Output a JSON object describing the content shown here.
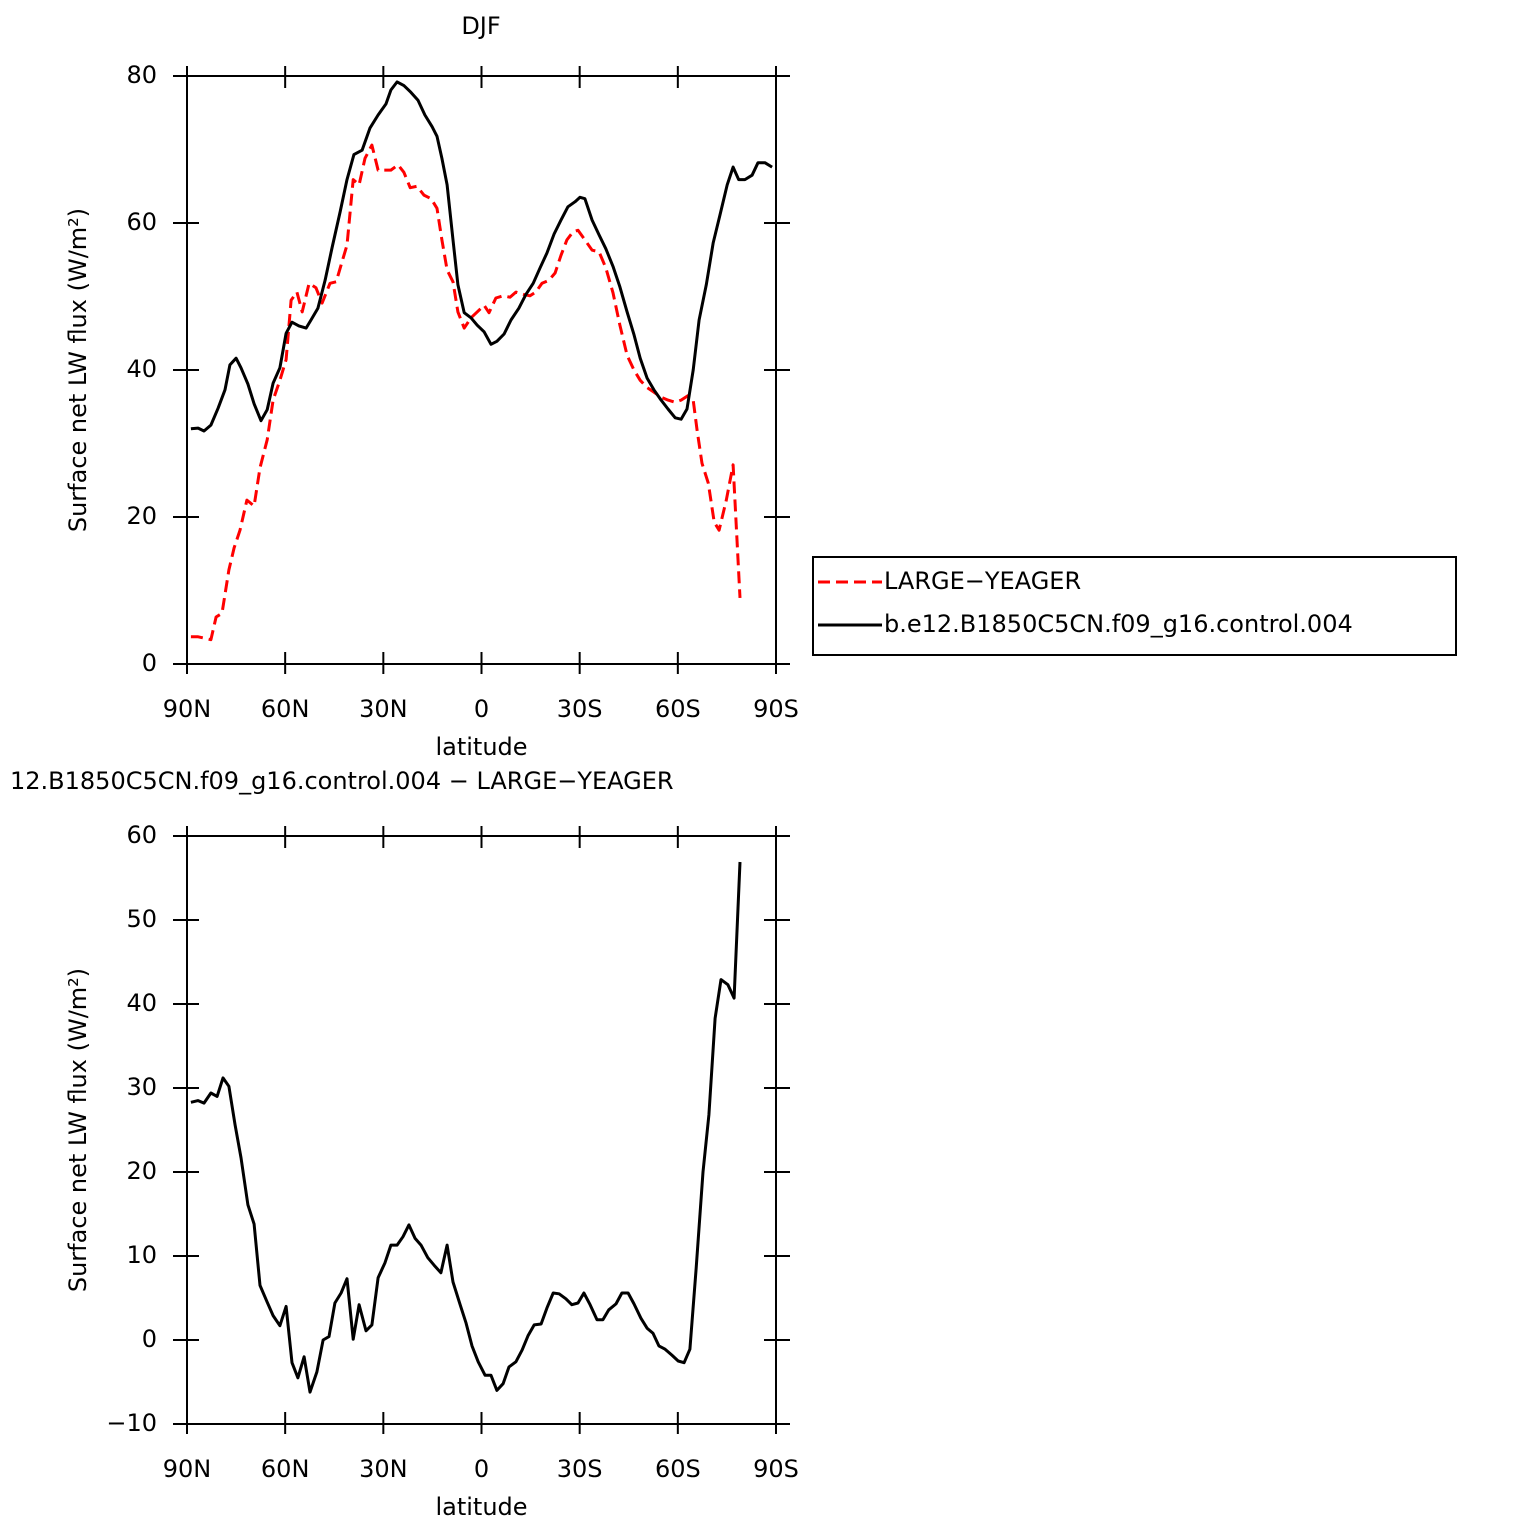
{
  "chart_data": [
    {
      "type": "line",
      "title": "DJF",
      "xlabel": "latitude",
      "ylabel": "Surface net LW flux (W/m²)",
      "xlim": [
        90,
        -90
      ],
      "xticks": [
        {
          "value": 90,
          "label": "90N"
        },
        {
          "value": 60,
          "label": "60N"
        },
        {
          "value": 30,
          "label": "30N"
        },
        0,
        {
          "value": -30,
          "label": "30S"
        },
        {
          "value": -60,
          "label": "60S"
        },
        {
          "value": -90,
          "label": "90S"
        }
      ],
      "ylim": [
        0,
        80
      ],
      "yticks": [
        0,
        20,
        40,
        60,
        80
      ],
      "legend": "right",
      "series": [
        {
          "name": "LARGE−YEAGER",
          "color": "#ff0000",
          "linestyle": "dashed",
          "x": [
            88.8,
            86.6,
            84.5,
            82.7,
            81.1,
            79.3,
            77.2,
            75.6,
            73.8,
            71.7,
            69.5,
            67.7,
            65.5,
            63.7,
            61.6,
            59.7,
            58.2,
            56.4,
            54.8,
            52.7,
            50.6,
            48.7,
            46.3,
            44.4,
            42.9,
            41.1,
            39.2,
            37.4,
            35.6,
            33.5,
            31.6,
            29.5,
            27.7,
            25.5,
            23.7,
            21.8,
            19.7,
            17.6,
            15.4,
            13.6,
            12.1,
            10.5,
            8.7,
            7.2,
            5.3,
            3.2,
            1.3,
            -0.8,
            -2.3,
            -4.4,
            -6.6,
            -8.7,
            -10.5,
            -12.7,
            -14.8,
            -16.6,
            -18.5,
            -20.6,
            -22.5,
            -24.3,
            -26.1,
            -28.0,
            -29.5,
            -31.6,
            -33.8,
            -35.9,
            -38.0,
            -40.2,
            -42.3,
            -44.5,
            -46.6,
            -48.5,
            -50.6,
            -52.7,
            -54.9,
            -57.0,
            -59.2,
            -61.0,
            -63.1,
            -64.7,
            -65.9,
            -67.4,
            -69.3,
            -71.1,
            -72.6,
            -74.8,
            -76.9,
            -79.0
          ],
          "values": [
            3.7,
            3.7,
            3.5,
            3.3,
            6.4,
            6.9,
            12.8,
            15.8,
            18.2,
            22.3,
            21.5,
            26.7,
            30.5,
            35.9,
            38.6,
            41.4,
            49.5,
            50.6,
            47.9,
            51.8,
            51.2,
            49.1,
            51.8,
            52.0,
            54.3,
            57.0,
            65.9,
            65.2,
            68.8,
            70.6,
            67.2,
            67.2,
            67.2,
            67.9,
            66.9,
            64.8,
            65.0,
            63.8,
            63.3,
            62.0,
            57.7,
            53.6,
            52.0,
            47.9,
            45.7,
            47.1,
            47.9,
            48.8,
            47.8,
            49.8,
            50.1,
            49.9,
            50.6,
            50.3,
            50.1,
            50.6,
            51.8,
            52.2,
            53.2,
            55.6,
            57.7,
            58.8,
            59.0,
            57.7,
            56.3,
            56.1,
            53.9,
            50.5,
            46.1,
            42.0,
            40.0,
            38.6,
            37.6,
            37.0,
            36.3,
            35.9,
            35.6,
            35.9,
            36.5,
            35.9,
            31.8,
            27.3,
            24.6,
            19.3,
            18.2,
            22.3,
            27.1,
            9.0
          ]
        },
        {
          "name": "b.e12.B1850C5CN.f09_g16.control.004",
          "color": "#000000",
          "linestyle": "solid",
          "x": [
            88.8,
            86.6,
            84.8,
            82.7,
            80.5,
            78.4,
            76.9,
            75.0,
            73.5,
            71.4,
            69.5,
            67.4,
            65.5,
            63.7,
            61.6,
            59.7,
            57.9,
            55.8,
            53.6,
            52.1,
            50.0,
            47.8,
            45.7,
            43.2,
            41.1,
            39.0,
            36.5,
            34.1,
            31.6,
            29.2,
            27.7,
            25.8,
            23.7,
            21.6,
            19.4,
            17.3,
            15.1,
            13.6,
            12.1,
            10.5,
            8.7,
            7.2,
            5.3,
            3.2,
            1.3,
            -0.8,
            -2.9,
            -4.7,
            -6.9,
            -9.0,
            -11.4,
            -13.6,
            -15.8,
            -17.9,
            -20.0,
            -22.2,
            -24.3,
            -26.4,
            -28.6,
            -30.1,
            -31.6,
            -33.8,
            -35.9,
            -38.0,
            -40.2,
            -42.3,
            -44.5,
            -46.6,
            -48.5,
            -50.6,
            -52.7,
            -54.9,
            -57.0,
            -59.2,
            -61.0,
            -62.8,
            -64.7,
            -66.5,
            -68.7,
            -70.8,
            -72.9,
            -75.1,
            -76.9,
            -78.6,
            -80.5,
            -82.7,
            -84.5,
            -86.6,
            -88.8
          ],
          "values": [
            32.0,
            32.1,
            31.7,
            32.5,
            34.8,
            37.3,
            40.7,
            41.6,
            40.3,
            38.1,
            35.4,
            33.1,
            34.6,
            38.2,
            40.3,
            45.0,
            46.5,
            46.0,
            45.7,
            46.8,
            48.4,
            52.2,
            56.6,
            61.5,
            65.9,
            69.3,
            69.9,
            72.9,
            74.7,
            76.2,
            78.1,
            79.2,
            78.7,
            77.8,
            76.7,
            74.7,
            73.1,
            71.8,
            68.8,
            65.2,
            57.7,
            51.6,
            47.8,
            47.1,
            46.1,
            45.2,
            43.5,
            43.9,
            44.9,
            46.8,
            48.4,
            50.3,
            51.8,
            53.9,
            55.9,
            58.5,
            60.4,
            62.2,
            62.9,
            63.5,
            63.3,
            60.4,
            58.4,
            56.5,
            54.1,
            51.3,
            47.9,
            44.8,
            41.6,
            38.9,
            37.3,
            35.9,
            34.7,
            33.5,
            33.3,
            34.7,
            40.0,
            46.8,
            51.6,
            57.3,
            61.1,
            65.2,
            67.6,
            65.9,
            65.9,
            66.5,
            68.2,
            68.2,
            67.6
          ]
        }
      ]
    },
    {
      "type": "line",
      "title": "12.B1850C5CN.f09_g16.control.004 − LARGE−YEAGER",
      "xlabel": "latitude",
      "ylabel": "Surface net LW flux (W/m²)",
      "xlim": [
        90,
        -90
      ],
      "xticks": [
        {
          "value": 90,
          "label": "90N"
        },
        {
          "value": 60,
          "label": "60N"
        },
        {
          "value": 30,
          "label": "30N"
        },
        0,
        {
          "value": -30,
          "label": "30S"
        },
        {
          "value": -60,
          "label": "60S"
        },
        {
          "value": -90,
          "label": "90S"
        }
      ],
      "ylim": [
        -10,
        60
      ],
      "yticks": [
        {
          "value": -10,
          "label": "−10"
        },
        0,
        10,
        20,
        30,
        40,
        50,
        60
      ],
      "series": [
        {
          "color": "#000000",
          "linestyle": "solid",
          "x": [
            88.8,
            86.6,
            84.8,
            82.7,
            80.8,
            79.0,
            77.2,
            75.3,
            73.5,
            71.4,
            69.5,
            67.7,
            65.5,
            63.7,
            61.6,
            59.7,
            57.9,
            56.1,
            54.2,
            52.4,
            50.3,
            48.4,
            46.6,
            44.8,
            42.9,
            41.1,
            39.2,
            37.4,
            35.3,
            33.5,
            31.6,
            29.5,
            27.7,
            25.8,
            24.0,
            22.2,
            20.3,
            18.5,
            16.4,
            14.5,
            12.4,
            10.5,
            8.7,
            6.6,
            4.7,
            2.9,
            1.0,
            -1.1,
            -2.9,
            -4.7,
            -6.6,
            -8.4,
            -10.5,
            -12.4,
            -14.2,
            -16.1,
            -18.2,
            -20.0,
            -21.9,
            -23.7,
            -25.8,
            -27.6,
            -29.5,
            -31.3,
            -33.2,
            -35.3,
            -37.1,
            -38.9,
            -41.1,
            -42.9,
            -44.8,
            -46.6,
            -48.7,
            -50.6,
            -52.4,
            -54.2,
            -56.1,
            -58.2,
            -60.1,
            -61.9,
            -63.7,
            -65.6,
            -67.7,
            -69.5,
            -71.4,
            -73.2,
            -75.3,
            -77.2,
            -79.0
          ],
          "values": [
            28.3,
            28.5,
            28.2,
            29.4,
            29.0,
            31.2,
            30.2,
            25.6,
            21.7,
            16.1,
            13.8,
            6.5,
            4.5,
            2.9,
            1.7,
            4.0,
            -2.7,
            -4.5,
            -2.0,
            -6.2,
            -3.8,
            0.0,
            0.4,
            4.4,
            5.6,
            7.3,
            0.1,
            4.2,
            1.1,
            1.8,
            7.4,
            9.2,
            11.3,
            11.3,
            12.3,
            13.7,
            12.1,
            11.3,
            9.8,
            8.9,
            8.0,
            11.3,
            6.9,
            4.3,
            2.0,
            -0.7,
            -2.6,
            -4.2,
            -4.2,
            -6.0,
            -5.2,
            -3.2,
            -2.6,
            -1.2,
            0.5,
            1.8,
            1.9,
            3.8,
            5.6,
            5.5,
            4.9,
            4.2,
            4.4,
            5.6,
            4.2,
            2.4,
            2.4,
            3.6,
            4.3,
            5.6,
            5.6,
            4.3,
            2.6,
            1.4,
            0.8,
            -0.7,
            -1.1,
            -1.8,
            -2.5,
            -2.7,
            -1.1,
            8.6,
            20.0,
            26.8,
            38.3,
            42.9,
            42.3,
            40.7,
            56.9
          ]
        }
      ]
    }
  ]
}
